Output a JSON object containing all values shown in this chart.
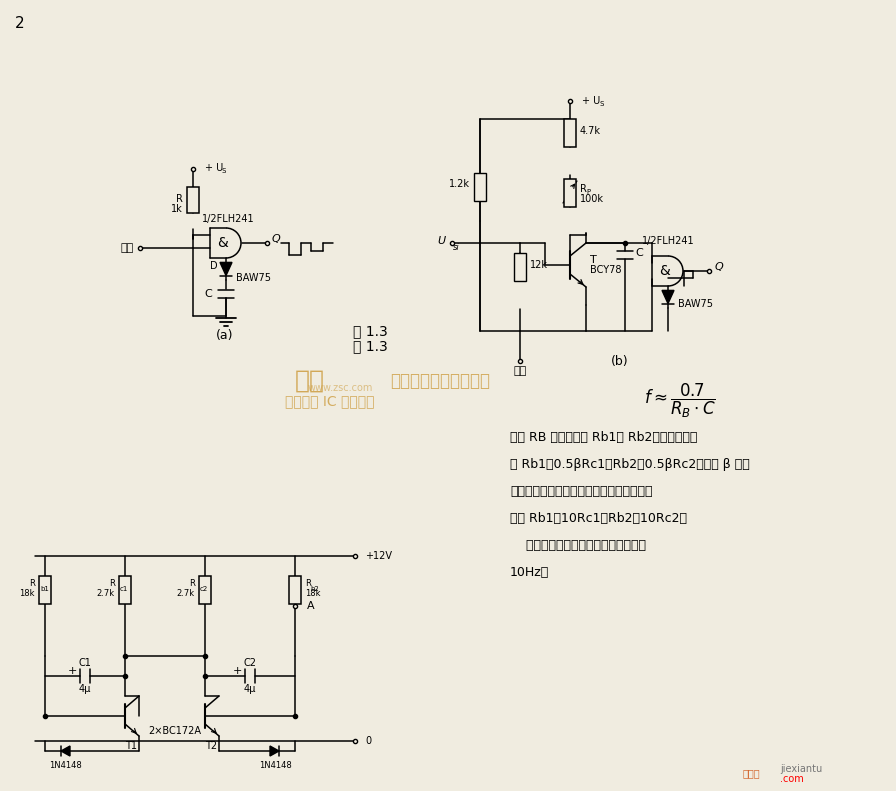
{
  "bg_color": "#f0ece0",
  "page_number": "2",
  "fig_label": "图 1.3",
  "watermark_color": "#c8922a",
  "jiexiantu_color": "#cc2200",
  "text_lines": [
    "式中 RB 即为图中的 Rb1或 Rb2，其上限值可",
    "取 Rb1＜0.5βRc1；Rb2＜0.5βRc2。这里 β 为各",
    "晶体管集电极电流放大系数。电阻的下限值",
    "可取 Rb1＞10Rc1；Rb2＞10Rc2。",
    "    在图中所示电路参数下矩形波频率为",
    "10Hz。"
  ]
}
